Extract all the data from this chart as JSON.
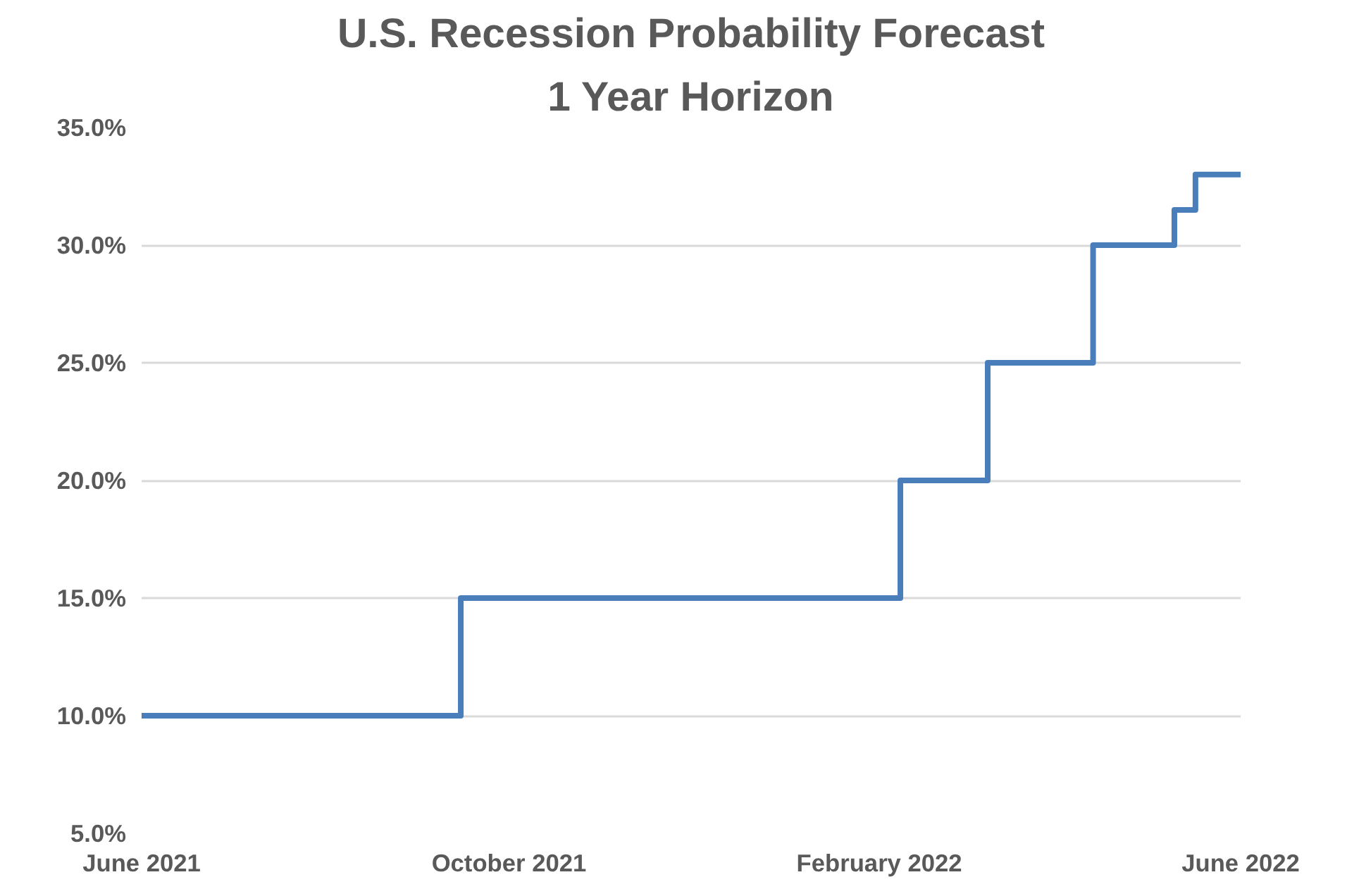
{
  "chart_data": {
    "type": "step",
    "title": "U.S. Recession Probability Forecast",
    "subtitle": "1 Year Horizon",
    "x": [
      "2021-06-01",
      "2021-09-15",
      "2022-02-08",
      "2022-03-09",
      "2022-04-13",
      "2022-05-10",
      "2022-05-17",
      "2022-06-01"
    ],
    "series": [
      {
        "color": "#4a7ebb",
        "values": [
          10,
          15,
          20,
          25,
          30,
          31.5,
          33,
          33
        ]
      }
    ],
    "xlim": [
      "2021-06-01",
      "2022-06-01"
    ],
    "xticks": [
      {
        "value": "2021-06-01",
        "label": "June 2021"
      },
      {
        "value": "2021-10-01",
        "label": "October 2021"
      },
      {
        "value": "2022-02-01",
        "label": "February 2022"
      },
      {
        "value": "2022-06-01",
        "label": "June 2022"
      }
    ],
    "ylim": [
      5,
      35
    ],
    "yticks": [
      {
        "value": 5,
        "label": "5.0%"
      },
      {
        "value": 10,
        "label": "10.0%"
      },
      {
        "value": 15,
        "label": "15.0%"
      },
      {
        "value": 20,
        "label": "20.0%"
      },
      {
        "value": 25,
        "label": "25.0%"
      },
      {
        "value": 30,
        "label": "30.0%"
      },
      {
        "value": 35,
        "label": "35.0%"
      }
    ],
    "grid": "y",
    "line_style": "solid"
  }
}
